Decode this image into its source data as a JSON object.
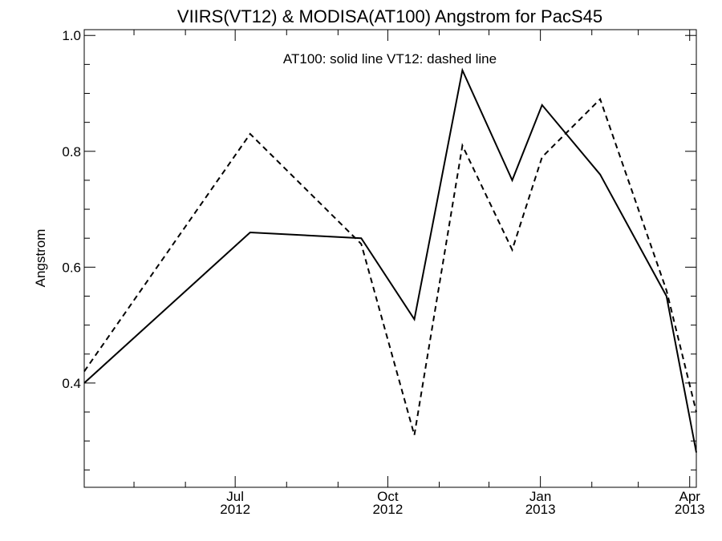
{
  "chart_data": {
    "type": "line",
    "title": "VIIRS(VT12) & MODISA(AT100)  Angstrom for PacS45",
    "annotation": "AT100: solid line   VT12: dashed line",
    "xlabel": "",
    "ylabel": "Angstrom",
    "xlim": [
      "2012-04-01",
      "2013-04-05"
    ],
    "ylim": [
      0.22,
      1.01
    ],
    "x_ticks": [
      {
        "date": "2012-07-01",
        "month": "Jul",
        "year": "2012"
      },
      {
        "date": "2012-10-01",
        "month": "Oct",
        "year": "2012"
      },
      {
        "date": "2013-01-01",
        "month": "Jan",
        "year": "2013"
      },
      {
        "date": "2013-04-01",
        "month": "Apr",
        "year": "2013"
      }
    ],
    "x_minor_ticks": [
      "2012-05-01",
      "2012-06-01",
      "2012-08-01",
      "2012-09-01",
      "2012-11-01",
      "2012-12-01",
      "2013-02-01",
      "2013-03-01"
    ],
    "y_ticks": [
      {
        "value": 0.4,
        "label": "0.4"
      },
      {
        "value": 0.6,
        "label": "0.6"
      },
      {
        "value": 0.8,
        "label": "0.8"
      },
      {
        "value": 1.0,
        "label": "1.0"
      }
    ],
    "y_minor_step": 0.05,
    "grid": false,
    "series": [
      {
        "name": "AT100",
        "style": "solid",
        "color": "#000000",
        "x": [
          "2012-04-01",
          "2012-07-10",
          "2012-09-15",
          "2012-10-17",
          "2012-11-15",
          "2012-12-15",
          "2013-01-02",
          "2013-02-06",
          "2013-03-18",
          "2013-04-05"
        ],
        "values": [
          0.4,
          0.66,
          0.65,
          0.51,
          0.94,
          0.75,
          0.88,
          0.76,
          0.55,
          0.28
        ]
      },
      {
        "name": "VT12",
        "style": "dashed",
        "color": "#000000",
        "x": [
          "2012-04-01",
          "2012-07-10",
          "2012-09-15",
          "2012-10-17",
          "2012-11-15",
          "2012-12-15",
          "2013-01-02",
          "2013-02-06",
          "2013-03-18",
          "2013-04-05"
        ],
        "values": [
          0.42,
          0.83,
          0.64,
          0.31,
          0.81,
          0.63,
          0.79,
          0.89,
          0.56,
          0.35
        ]
      }
    ]
  }
}
